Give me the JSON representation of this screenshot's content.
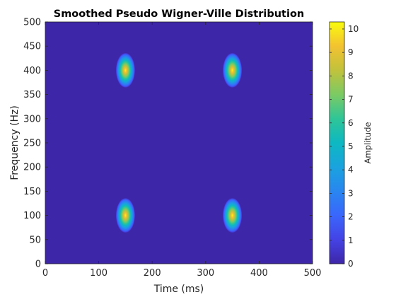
{
  "chart_data": {
    "type": "heatmap",
    "title": "Smoothed Pseudo Wigner-Ville Distribution",
    "xlabel": "Time (ms)",
    "ylabel": "Frequency (Hz)",
    "xlim": [
      0,
      500
    ],
    "ylim": [
      0,
      500
    ],
    "xticks": [
      "0",
      "100",
      "200",
      "300",
      "400",
      "500"
    ],
    "yticks": [
      "0",
      "50",
      "100",
      "150",
      "200",
      "250",
      "300",
      "350",
      "400",
      "450",
      "500"
    ],
    "colorbar": {
      "label": "Amplitude",
      "range": [
        0,
        10.3
      ],
      "ticks": [
        "0",
        "1",
        "2",
        "3",
        "4",
        "5",
        "6",
        "7",
        "8",
        "9",
        "10"
      ],
      "colormap": "parula"
    },
    "peaks": [
      {
        "time": 150,
        "frequency": 400,
        "amplitude": 10.3
      },
      {
        "time": 350,
        "frequency": 400,
        "amplitude": 10.3
      },
      {
        "time": 150,
        "frequency": 100,
        "amplitude": 10.3
      },
      {
        "time": 350,
        "frequency": 100,
        "amplitude": 10.3
      }
    ],
    "peak_spread": {
      "time_sigma": 6,
      "frequency_sigma": 12
    },
    "grid": false
  }
}
